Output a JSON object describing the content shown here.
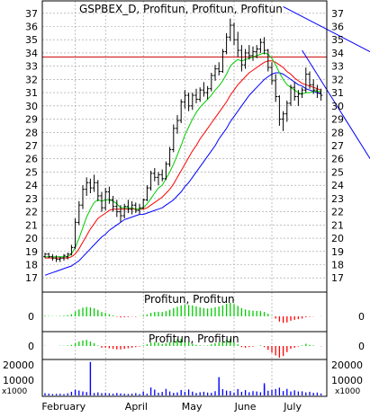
{
  "chart_data": [
    {
      "type": "candlestick",
      "title": "GSPBEX_D, Profitun, Profitun, Profitun",
      "x_labels": [
        "February",
        "April",
        "May",
        "June",
        "July"
      ],
      "y_ticks": [
        17,
        18,
        19,
        20,
        21,
        22,
        23,
        24,
        25,
        26,
        27,
        28,
        29,
        30,
        31,
        32,
        33,
        34,
        35,
        36,
        37
      ],
      "ylim": [
        16.2,
        37.8
      ],
      "horizontal_line": 33.7,
      "trendlines": [
        {
          "from": [
            63,
            37.5
          ],
          "to": [
            96,
            32.6
          ]
        },
        {
          "from": [
            68,
            34.2
          ],
          "to": [
            86,
            26.0
          ]
        }
      ],
      "prices": [
        [
          18.6,
          18.9,
          18.5,
          18.8
        ],
        [
          18.8,
          18.9,
          18.5,
          18.6
        ],
        [
          18.6,
          18.8,
          18.3,
          18.5
        ],
        [
          18.5,
          18.7,
          18.2,
          18.4
        ],
        [
          18.4,
          18.6,
          18.2,
          18.5
        ],
        [
          18.5,
          18.8,
          18.3,
          18.7
        ],
        [
          18.6,
          18.9,
          18.4,
          18.8
        ],
        [
          18.8,
          19.5,
          18.7,
          19.3
        ],
        [
          19.3,
          21.5,
          19.2,
          21.2
        ],
        [
          21.2,
          22.8,
          21.0,
          22.5
        ],
        [
          22.5,
          24.0,
          22.2,
          23.7
        ],
        [
          23.7,
          24.6,
          23.2,
          24.2
        ],
        [
          24.2,
          24.5,
          23.4,
          23.8
        ],
        [
          23.8,
          24.8,
          23.5,
          24.2
        ],
        [
          24.2,
          24.4,
          22.8,
          23.2
        ],
        [
          23.2,
          23.5,
          22.0,
          22.3
        ],
        [
          22.3,
          23.8,
          22.1,
          23.5
        ],
        [
          23.5,
          23.9,
          22.6,
          22.9
        ],
        [
          22.9,
          23.2,
          22.0,
          22.4
        ],
        [
          22.4,
          22.9,
          21.6,
          22.0
        ],
        [
          22.0,
          22.5,
          21.2,
          21.7
        ],
        [
          21.7,
          22.6,
          21.5,
          22.4
        ],
        [
          22.4,
          22.9,
          21.9,
          22.2
        ],
        [
          22.2,
          22.8,
          21.8,
          22.5
        ],
        [
          22.5,
          22.7,
          21.9,
          22.1
        ],
        [
          22.1,
          22.6,
          21.8,
          22.3
        ],
        [
          22.3,
          23.0,
          22.2,
          22.9
        ],
        [
          22.9,
          24.0,
          22.8,
          23.8
        ],
        [
          23.8,
          25.1,
          23.6,
          24.9
        ],
        [
          24.9,
          25.3,
          24.3,
          24.6
        ],
        [
          24.6,
          25.0,
          24.0,
          24.8
        ],
        [
          24.8,
          25.2,
          24.3,
          24.5
        ],
        [
          24.5,
          25.8,
          24.4,
          25.6
        ],
        [
          25.6,
          26.9,
          25.4,
          26.7
        ],
        [
          26.7,
          28.6,
          26.5,
          28.3
        ],
        [
          28.3,
          29.3,
          27.9,
          28.9
        ],
        [
          28.9,
          30.5,
          28.7,
          30.3
        ],
        [
          30.3,
          31.2,
          29.8,
          30.8
        ],
        [
          30.8,
          31.0,
          29.6,
          30.0
        ],
        [
          30.0,
          31.0,
          29.7,
          30.8
        ],
        [
          30.8,
          31.3,
          30.2,
          30.5
        ],
        [
          30.5,
          31.4,
          30.3,
          31.2
        ],
        [
          31.2,
          31.8,
          30.7,
          31.0
        ],
        [
          31.0,
          31.5,
          30.5,
          31.3
        ],
        [
          31.3,
          32.5,
          31.1,
          32.3
        ],
        [
          32.3,
          33.1,
          31.9,
          32.8
        ],
        [
          32.8,
          33.3,
          32.3,
          32.6
        ],
        [
          32.6,
          34.3,
          32.5,
          34.1
        ],
        [
          34.1,
          35.5,
          33.9,
          35.2
        ],
        [
          35.2,
          36.6,
          34.9,
          36.1
        ],
        [
          36.1,
          36.3,
          34.6,
          35.0
        ],
        [
          35.0,
          35.6,
          33.7,
          34.2
        ],
        [
          34.2,
          34.6,
          32.6,
          33.1
        ],
        [
          33.1,
          34.3,
          32.8,
          34.0
        ],
        [
          34.0,
          34.6,
          33.5,
          33.8
        ],
        [
          33.8,
          34.5,
          33.4,
          34.1
        ],
        [
          34.1,
          34.6,
          33.6,
          34.3
        ],
        [
          34.3,
          35.1,
          34.0,
          34.8
        ],
        [
          34.8,
          35.2,
          33.9,
          34.2
        ],
        [
          34.2,
          34.3,
          32.6,
          32.9
        ],
        [
          32.9,
          33.3,
          31.6,
          31.9
        ],
        [
          31.9,
          32.4,
          30.3,
          30.7
        ],
        [
          30.7,
          30.8,
          28.5,
          29.0
        ],
        [
          29.0,
          29.6,
          28.1,
          29.4
        ],
        [
          29.4,
          30.4,
          28.8,
          30.2
        ],
        [
          30.2,
          31.6,
          30.0,
          31.4
        ],
        [
          31.4,
          31.8,
          30.4,
          30.7
        ],
        [
          30.7,
          31.2,
          30.0,
          30.9
        ],
        [
          30.9,
          31.4,
          30.6,
          31.2
        ],
        [
          31.2,
          32.9,
          31.0,
          32.4
        ],
        [
          32.4,
          32.6,
          31.3,
          31.6
        ],
        [
          31.6,
          32.0,
          30.9,
          31.2
        ],
        [
          31.2,
          31.6,
          30.6,
          31.0
        ],
        [
          31.0,
          31.3,
          30.4,
          30.8
        ]
      ],
      "ma_fast": [
        18.6,
        18.6,
        18.6,
        18.6,
        18.6,
        18.6,
        18.6,
        18.8,
        19.3,
        20.0,
        20.8,
        21.6,
        22.2,
        22.7,
        22.9,
        22.8,
        22.9,
        22.9,
        22.8,
        22.6,
        22.3,
        22.3,
        22.3,
        22.3,
        22.2,
        22.2,
        22.3,
        22.6,
        23.0,
        23.4,
        23.8,
        24.0,
        24.5,
        25.0,
        25.6,
        26.3,
        27.0,
        27.8,
        28.4,
        29.0,
        29.5,
        29.9,
        30.2,
        30.5,
        30.8,
        31.2,
        31.5,
        31.9,
        32.4,
        33.0,
        33.3,
        33.5,
        33.4,
        33.5,
        33.6,
        33.7,
        33.8,
        33.9,
        34.0,
        33.9,
        33.6,
        33.1,
        32.5,
        32.0,
        31.6,
        31.4,
        31.2,
        31.0,
        30.9,
        31.0,
        31.0,
        31.1,
        31.1,
        31.1
      ],
      "ma_mid": [
        18.5,
        18.5,
        18.5,
        18.5,
        18.5,
        18.5,
        18.5,
        18.6,
        18.8,
        19.2,
        19.7,
        20.2,
        20.7,
        21.1,
        21.5,
        21.7,
        21.9,
        22.1,
        22.2,
        22.2,
        22.2,
        22.2,
        22.2,
        22.2,
        22.2,
        22.2,
        22.2,
        22.3,
        22.5,
        22.7,
        22.9,
        23.1,
        23.4,
        23.7,
        24.1,
        24.6,
        25.1,
        25.6,
        26.1,
        26.6,
        27.0,
        27.5,
        27.9,
        28.3,
        28.7,
        29.1,
        29.5,
        29.9,
        30.3,
        30.8,
        31.2,
        31.6,
        31.9,
        32.2,
        32.5,
        32.7,
        32.9,
        33.1,
        33.3,
        33.4,
        33.4,
        33.3,
        33.1,
        32.9,
        32.6,
        32.4,
        32.1,
        31.9,
        31.7,
        31.6,
        31.5,
        31.4,
        31.3,
        31.2
      ],
      "ma_slow": [
        17.2,
        17.3,
        17.4,
        17.5,
        17.6,
        17.7,
        17.8,
        17.9,
        18.1,
        18.3,
        18.6,
        18.9,
        19.2,
        19.5,
        19.8,
        20.1,
        20.3,
        20.6,
        20.8,
        21.0,
        21.2,
        21.4,
        21.5,
        21.6,
        21.7,
        21.8,
        21.8,
        21.9,
        22.0,
        22.1,
        22.2,
        22.3,
        22.5,
        22.7,
        22.9,
        23.2,
        23.5,
        23.9,
        24.2,
        24.6,
        25.0,
        25.4,
        25.8,
        26.2,
        26.6,
        27.0,
        27.5,
        27.9,
        28.3,
        28.8,
        29.2,
        29.6,
        30.0,
        30.4,
        30.8,
        31.1,
        31.4,
        31.7,
        32.0,
        32.2,
        32.4,
        32.5,
        32.5,
        32.4,
        32.2,
        32.0,
        31.8,
        31.6,
        31.5,
        31.3,
        31.2,
        31.1,
        31.0,
        30.9
      ]
    },
    {
      "type": "bar",
      "title": "Profitun, Profitun",
      "y_ticks": [
        0
      ],
      "values": [
        0.3,
        0.2,
        0.1,
        0.1,
        0.2,
        0.3,
        0.5,
        1.0,
        2.2,
        3.2,
        4.0,
        4.3,
        4.1,
        3.7,
        3.0,
        2.0,
        1.6,
        1.0,
        0.4,
        -0.2,
        -0.5,
        -0.4,
        -0.3,
        -0.1,
        -0.2,
        0.1,
        0.4,
        0.9,
        1.6,
        2.0,
        2.1,
        2.0,
        2.4,
        3.0,
        3.8,
        4.4,
        5.0,
        5.4,
        5.2,
        5.0,
        4.6,
        4.2,
        3.8,
        3.6,
        3.8,
        4.2,
        4.5,
        5.0,
        5.8,
        6.2,
        5.6,
        4.8,
        3.8,
        3.2,
        2.8,
        2.6,
        2.5,
        2.4,
        2.0,
        1.2,
        0.2,
        -1.0,
        -2.4,
        -3.0,
        -2.8,
        -2.0,
        -1.6,
        -1.3,
        -1.0,
        -0.4,
        -0.2,
        -0.1,
        0.0,
        0.1
      ]
    },
    {
      "type": "bar",
      "title": "Profitun, Profitun",
      "y_ticks": [
        0
      ],
      "values": [
        0.1,
        0.0,
        0.0,
        0.0,
        0.1,
        0.1,
        0.2,
        0.4,
        1.0,
        1.6,
        2.0,
        2.2,
        1.6,
        1.0,
        0.2,
        -0.6,
        -0.6,
        -0.8,
        -1.0,
        -1.2,
        -1.2,
        -1.0,
        -0.8,
        -0.6,
        -0.4,
        -0.2,
        0.2,
        0.6,
        1.2,
        1.4,
        1.2,
        0.8,
        1.0,
        1.4,
        2.0,
        2.4,
        2.6,
        2.4,
        1.4,
        0.8,
        0.4,
        0.2,
        0.1,
        0.2,
        0.6,
        1.0,
        1.2,
        1.6,
        2.2,
        2.6,
        1.4,
        0.6,
        -0.4,
        -0.6,
        -0.4,
        -0.2,
        0.0,
        0.2,
        -0.4,
        -1.4,
        -2.4,
        -3.4,
        -4.2,
        -3.6,
        -2.2,
        -1.0,
        -0.6,
        -0.2,
        0.2,
        0.8,
        0.4,
        0.2,
        0.0,
        -0.1
      ]
    },
    {
      "type": "bar",
      "title": "",
      "y_ticks": [
        20000,
        10000
      ],
      "y_unit": "x1000",
      "values": [
        1500,
        1200,
        900,
        1000,
        1100,
        900,
        1400,
        2400,
        3800,
        3200,
        2600,
        2200,
        1800,
        1600,
        2000,
        1500,
        1700,
        1400,
        1200,
        1600,
        1300,
        1100,
        1000,
        1200,
        1500,
        900,
        2600,
        1200,
        5200,
        3800,
        1800,
        2300,
        4300,
        2600,
        1700,
        2000,
        3600,
        2400,
        3900,
        2500,
        1600,
        2100,
        2400,
        1900,
        1700,
        2800,
        5200,
        4100,
        3200,
        2900,
        1900,
        4200,
        2400,
        3500,
        2100,
        2800,
        2600,
        2100,
        6400,
        3100,
        3700,
        4200,
        5100,
        2900,
        4300,
        2600,
        3400,
        2600,
        2700,
        2000,
        2400,
        1700,
        1900,
        1300
      ]
    }
  ],
  "volume_highlight_values": [
    22000,
    12000,
    8000
  ]
}
